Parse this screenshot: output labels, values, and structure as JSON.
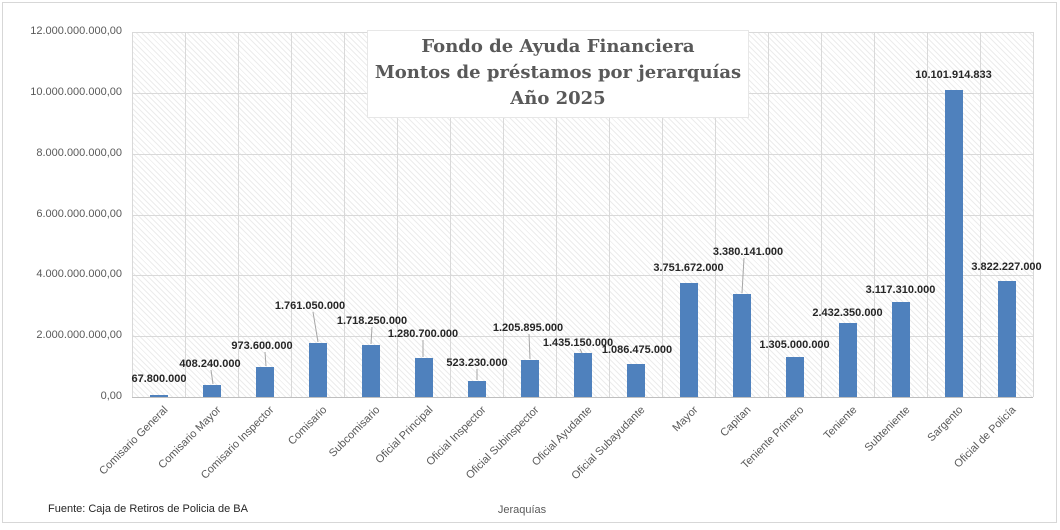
{
  "chart_data": {
    "type": "bar",
    "title_lines": [
      "Fondo de Ayuda Financiera",
      "Montos de préstamos por jerarquías",
      "Año 2025"
    ],
    "xlabel": "Jeraquías",
    "source_note": "Fuente: Caja de Retiros de Policia de BA",
    "categories": [
      "Comisario General",
      "Comisario Mayor",
      "Comisario Inspector",
      "Comisario",
      "Subcomisario",
      "Oficial Principal",
      "Oficial Inspector",
      "Oficial Subinspector",
      "Oficial Ayudante",
      "Oficial Subayudante",
      "Mayor",
      "Capitan",
      "Teniente Primero",
      "Teniente",
      "Subteniente",
      "Sargento",
      "Oficial de Policía"
    ],
    "values": [
      67800000,
      408240000,
      973600000,
      1761050000,
      1718250000,
      1280700000,
      523230000,
      1205895000,
      1435150000,
      1086475000,
      3751672000,
      3380141000,
      1305000000,
      2432350000,
      3117310000,
      10101914833,
      3822227000
    ],
    "data_labels": [
      "67.800.000",
      "408.240.000",
      "973.600.000",
      "1.761.050.000",
      "1.718.250.000",
      "1.280.700.000",
      "523.230.000",
      "1.205.895.000",
      "1.435.150.000",
      "1.086.475.000",
      "3.751.672.000",
      "3.380.141.000",
      "1.305.000.000",
      "2.432.350.000",
      "3.117.310.000",
      "10.101.914.833",
      "3.822.227.000"
    ],
    "ylim": [
      0,
      12000000000
    ],
    "ytick_step": 2000000000,
    "ytick_labels": [
      "0,00",
      "2.000.000.000,00",
      "4.000.000.000,00",
      "6.000.000.000,00",
      "8.000.000.000,00",
      "10.000.000.000,00",
      "12.000.000.000,00"
    ],
    "grid": true,
    "legend": false,
    "plot_background": "diagonal-hatch",
    "colors": {
      "bar": "#4F81BD",
      "grid": "#d9d9d9",
      "axis_text": "#595959",
      "data_label_text": "#262626",
      "leader_line": "#a6a6a6",
      "title_text": "#595959"
    }
  }
}
